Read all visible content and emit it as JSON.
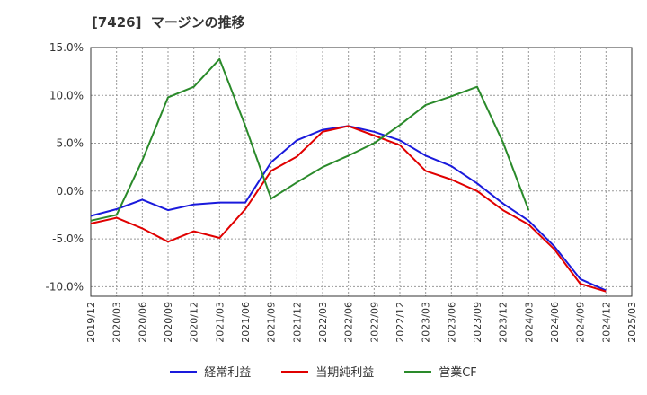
{
  "title": "[7426]  マージンの推移",
  "colors": {
    "keijo": "#1a1adc",
    "junri": "#e00000",
    "cf": "#2a8a2a",
    "grid": "#999999",
    "axis": "#333333"
  },
  "chart_data": {
    "type": "line",
    "title": "[7426]  マージンの推移",
    "xlabel": "",
    "ylabel": "",
    "ylim": [
      -11,
      15
    ],
    "yticks": [
      15,
      10,
      5,
      0,
      -5,
      -10
    ],
    "ytick_labels": [
      "15.0%",
      "10.0%",
      "5.0%",
      "0.0%",
      "-5.0%",
      "-10.0%"
    ],
    "grid": true,
    "legend_position": "bottom",
    "categories": [
      "2019/12",
      "2020/03",
      "2020/06",
      "2020/09",
      "2020/12",
      "2021/03",
      "2021/06",
      "2021/09",
      "2021/12",
      "2022/03",
      "2022/06",
      "2022/09",
      "2022/12",
      "2023/03",
      "2023/06",
      "2023/09",
      "2023/12",
      "2024/03",
      "2024/06",
      "2024/09",
      "2024/12",
      "2025/03"
    ],
    "series": [
      {
        "name": "経常利益",
        "color": "#1a1adc",
        "values": [
          -2.6,
          -1.9,
          -0.9,
          -2.0,
          -1.4,
          -1.2,
          -1.2,
          3.0,
          5.3,
          6.4,
          6.8,
          6.2,
          5.3,
          3.7,
          2.6,
          0.8,
          -1.3,
          -3.1,
          -5.8,
          -9.2,
          -10.4,
          null
        ]
      },
      {
        "name": "当期純利益",
        "color": "#e00000",
        "values": [
          -3.4,
          -2.8,
          -3.9,
          -5.3,
          -4.2,
          -4.9,
          -1.9,
          2.1,
          3.6,
          6.2,
          6.8,
          5.8,
          4.8,
          2.1,
          1.2,
          0.0,
          -2.0,
          -3.5,
          -6.1,
          -9.7,
          -10.5,
          null
        ]
      },
      {
        "name": "営業CF",
        "color": "#2a8a2a",
        "values": [
          -3.1,
          -2.5,
          3.2,
          9.8,
          10.9,
          13.8,
          6.8,
          -0.8,
          0.9,
          2.5,
          3.7,
          5.0,
          6.9,
          9.0,
          9.9,
          10.9,
          5.1,
          -2.0,
          null,
          null,
          null,
          null
        ]
      }
    ]
  }
}
